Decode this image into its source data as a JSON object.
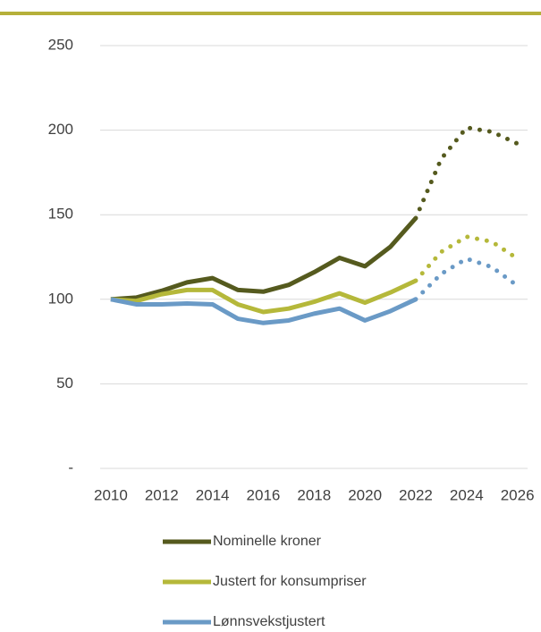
{
  "chart_data": {
    "type": "line",
    "x": [
      2010,
      2011,
      2012,
      2013,
      2014,
      2015,
      2016,
      2017,
      2018,
      2019,
      2020,
      2021,
      2022,
      2023,
      2024,
      2025,
      2026
    ],
    "series": [
      {
        "name": "Nominelle kroner",
        "color": "#555a1e",
        "values": [
          100,
          101,
          105,
          110,
          112.5,
          105.5,
          104.5,
          108.5,
          116,
          124.5,
          119.5,
          131,
          148,
          183,
          201.5,
          199,
          192
        ]
      },
      {
        "name": "Justert for konsumpriser",
        "color": "#b5b83a",
        "values": [
          100,
          99,
          103,
          105.5,
          105.5,
          97,
          92.5,
          94.5,
          98.5,
          103.5,
          98,
          104,
          111,
          128,
          137,
          134,
          124
        ]
      },
      {
        "name": "Lønnsvekstjustert",
        "color": "#6a9ac6",
        "values": [
          100,
          97,
          97,
          97.5,
          97,
          88.5,
          86,
          87.5,
          91.5,
          94.5,
          87.5,
          93,
          100,
          115,
          124,
          119,
          108
        ]
      }
    ],
    "projection_start": 2022,
    "xlim": [
      2009.58,
      2026.4
    ],
    "xticks": [
      2010,
      2012,
      2014,
      2016,
      2018,
      2020,
      2022,
      2024,
      2026
    ],
    "ylim": [
      0,
      250
    ],
    "yticks": [
      {
        "value": 0,
        "label": "-"
      },
      50,
      100,
      150,
      200,
      250
    ],
    "grid": true,
    "legend": "bottom"
  }
}
